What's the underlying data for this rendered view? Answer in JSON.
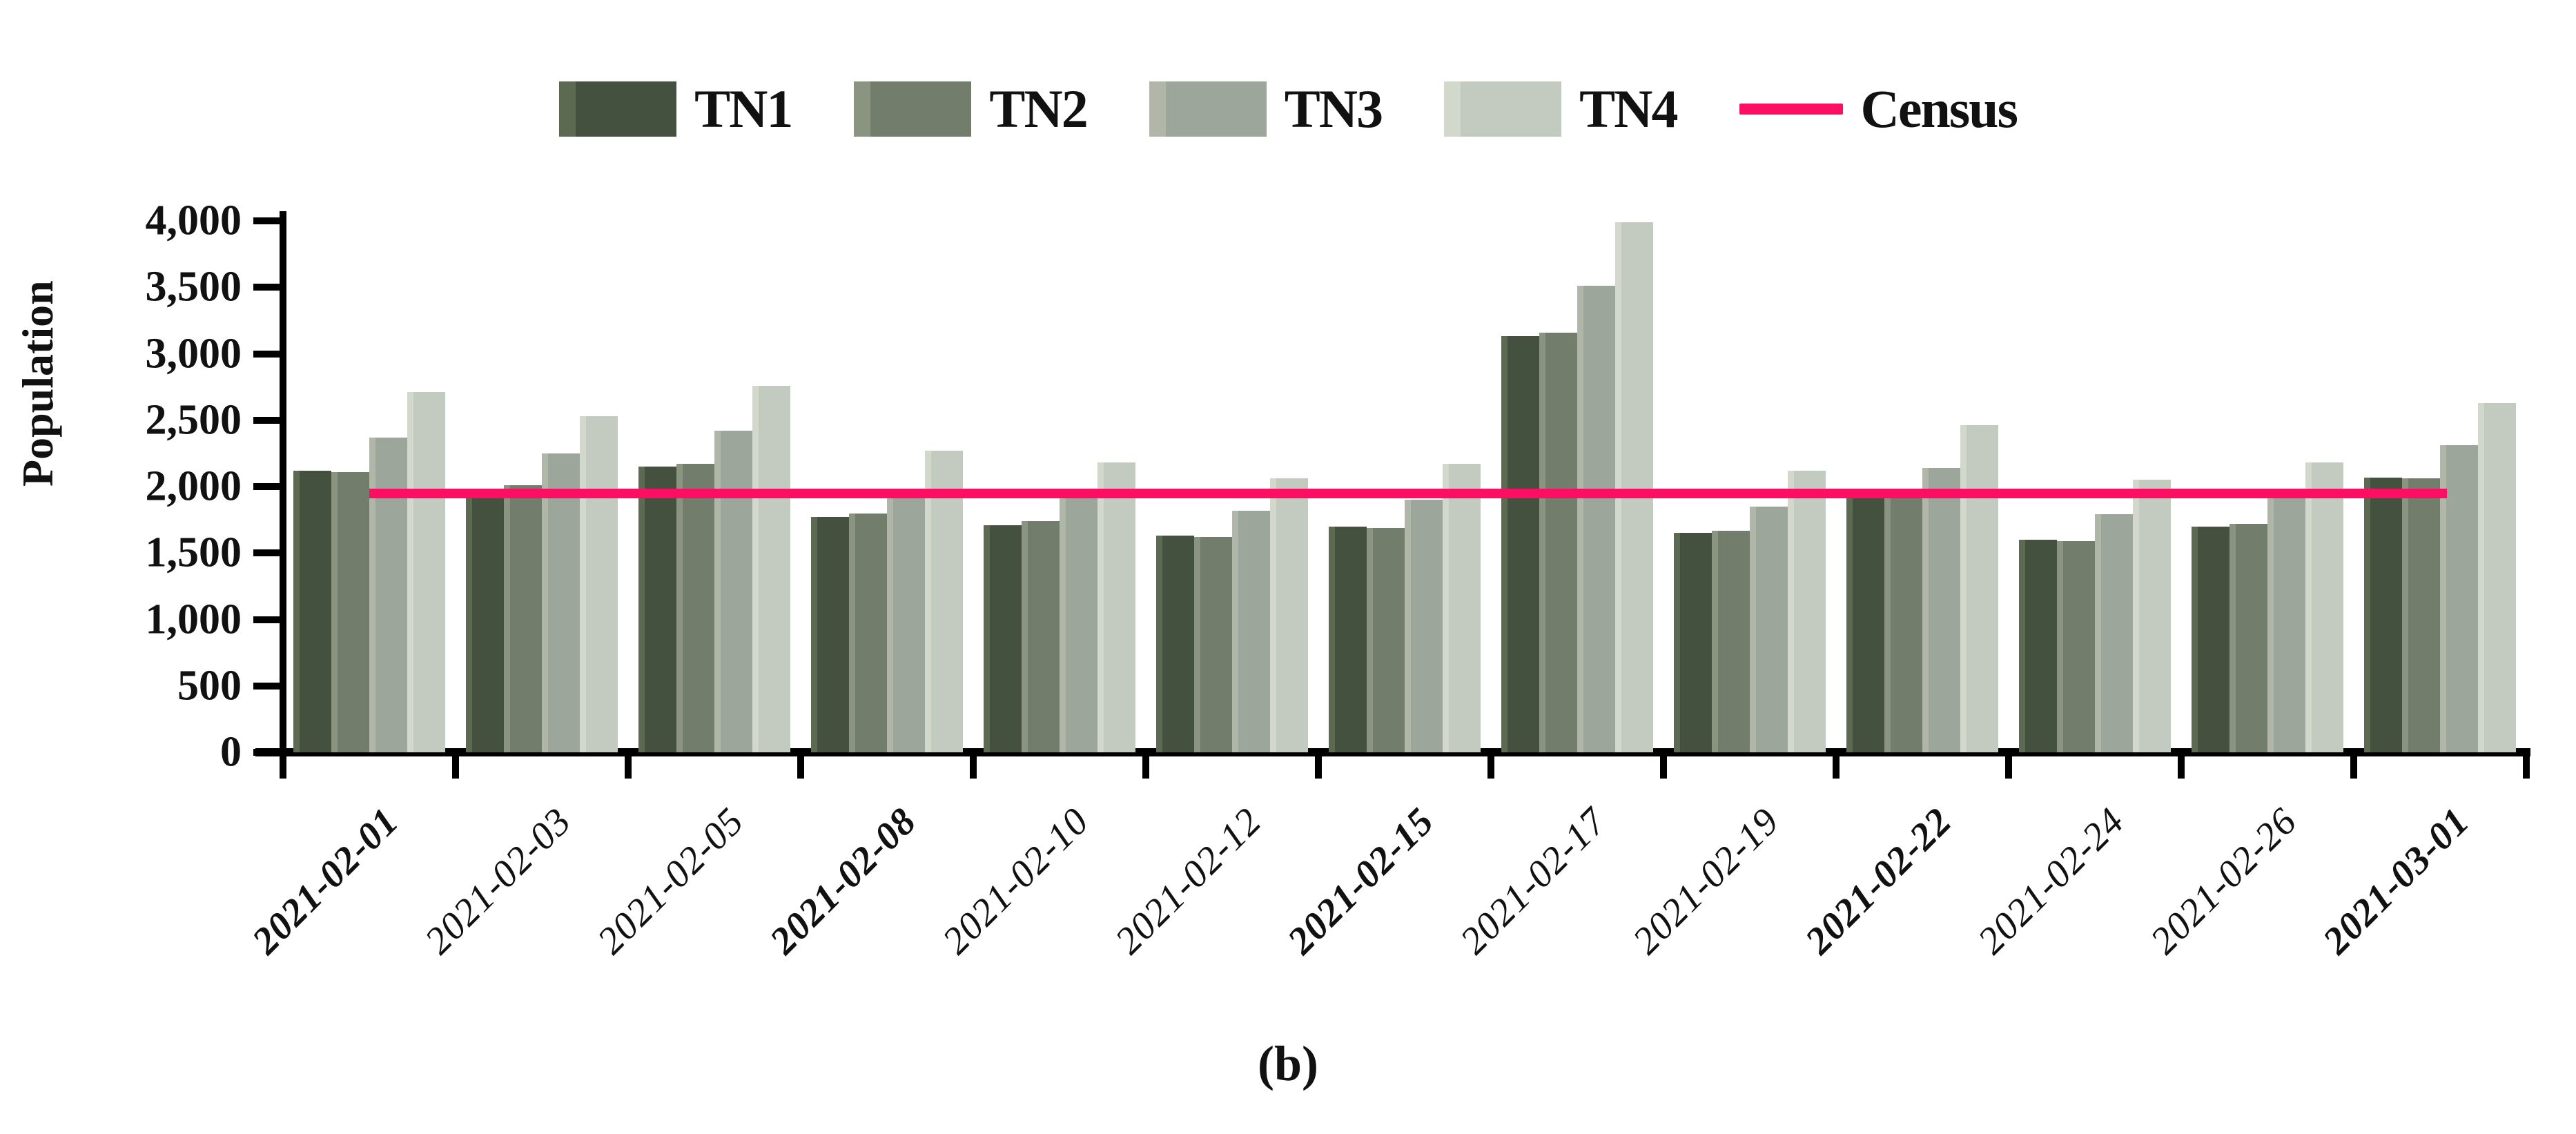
{
  "figure": {
    "caption": "(b)"
  },
  "axes": {
    "y_title": "Population",
    "y_tick_labels": [
      "0",
      "500",
      "1,000",
      "1,500",
      "2,000",
      "2,500",
      "3,000",
      "3,500",
      "4,000"
    ],
    "y_tick_values": [
      0,
      500,
      1000,
      1500,
      2000,
      2500,
      3000,
      3500,
      4000
    ]
  },
  "legend": {
    "bar_items": [
      {
        "label": "TN1",
        "color": "#44513e",
        "edge": "#5d6a52"
      },
      {
        "label": "TN2",
        "color": "#727d6b",
        "edge": "#8b9480"
      },
      {
        "label": "TN3",
        "color": "#9da69a",
        "edge": "#b0b7a9"
      },
      {
        "label": "TN4",
        "color": "#c3cabf",
        "edge": "#d3d8cd"
      }
    ],
    "line_item": {
      "label": "Census",
      "color": "#fa0f62"
    }
  },
  "chart_data": {
    "type": "bar",
    "title": "",
    "xlabel": "",
    "ylabel": "Population",
    "ylim": [
      0,
      4000
    ],
    "grid": false,
    "legend_position": "top",
    "categories": [
      "2021-02-01",
      "2021-02-03",
      "2021-02-05",
      "2021-02-08",
      "2021-02-10",
      "2021-02-12",
      "2021-02-15",
      "2021-02-17",
      "2021-02-19",
      "2021-02-22",
      "2021-02-24",
      "2021-02-26",
      "2021-03-01"
    ],
    "bold_categories": [
      "2021-02-01",
      "2021-02-08",
      "2021-02-15",
      "2021-02-22",
      "2021-03-01"
    ],
    "series": [
      {
        "name": "TN1",
        "values": [
          2120,
          1930,
          2150,
          1770,
          1710,
          1630,
          1700,
          3130,
          1650,
          1930,
          1600,
          1700,
          2070
        ]
      },
      {
        "name": "TN2",
        "values": [
          2110,
          2010,
          2170,
          1800,
          1740,
          1620,
          1690,
          3160,
          1670,
          1940,
          1590,
          1720,
          2060
        ]
      },
      {
        "name": "TN3",
        "values": [
          2370,
          2250,
          2420,
          1940,
          1940,
          1820,
          1900,
          3510,
          1850,
          2140,
          1790,
          1920,
          2310
        ]
      },
      {
        "name": "TN4",
        "values": [
          2710,
          2530,
          2760,
          2270,
          2180,
          2060,
          2170,
          3990,
          2120,
          2460,
          2050,
          2180,
          2630
        ]
      }
    ],
    "line_series": {
      "name": "Census",
      "value": 1950
    }
  },
  "colors": {
    "axis": "#000000",
    "census": "#fa0f62",
    "text": "#111111"
  }
}
